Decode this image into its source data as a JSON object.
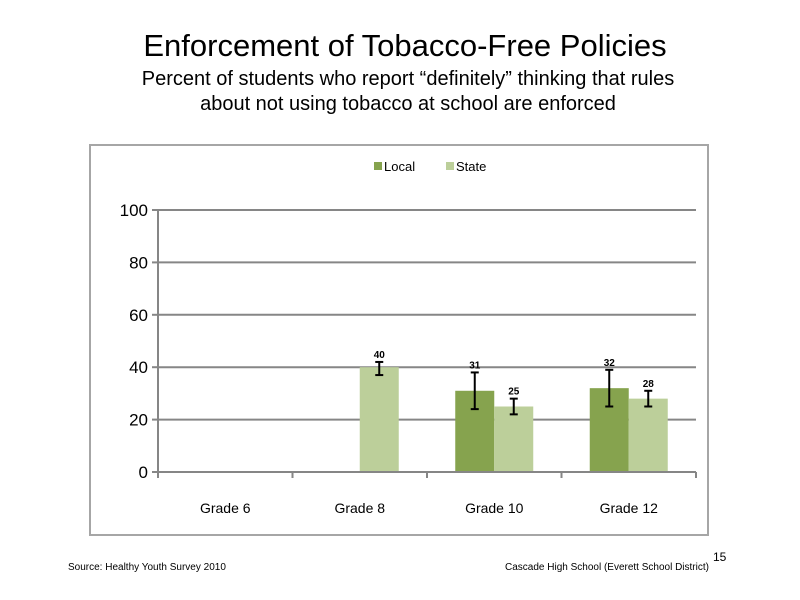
{
  "slide": {
    "title": "Enforcement of Tobacco-Free Policies",
    "subtitle_line1": "Percent of students who report “definitely” thinking that rules",
    "subtitle_line2": "about not using tobacco at school are enforced",
    "source": "Source: Healthy Youth Survey 2010",
    "school": "Cascade High School (Everett School District)",
    "page_number": "15"
  },
  "chart_data": {
    "type": "bar",
    "categories": [
      "Grade 6",
      "Grade 8",
      "Grade 10",
      "Grade 12"
    ],
    "series": [
      {
        "name": "Local",
        "color": "#86a34e",
        "values": [
          null,
          null,
          31,
          32
        ],
        "err_low": [
          null,
          null,
          24,
          25
        ],
        "err_high": [
          null,
          null,
          38,
          39
        ]
      },
      {
        "name": "State",
        "color": "#bccf9a",
        "values": [
          null,
          40,
          25,
          28
        ],
        "err_low": [
          null,
          37,
          22,
          25
        ],
        "err_high": [
          null,
          42,
          28,
          31
        ]
      }
    ],
    "ylim": [
      0,
      100
    ],
    "yticks": [
      0,
      20,
      40,
      60,
      80,
      100
    ],
    "grid": true,
    "legend_position": "top"
  }
}
